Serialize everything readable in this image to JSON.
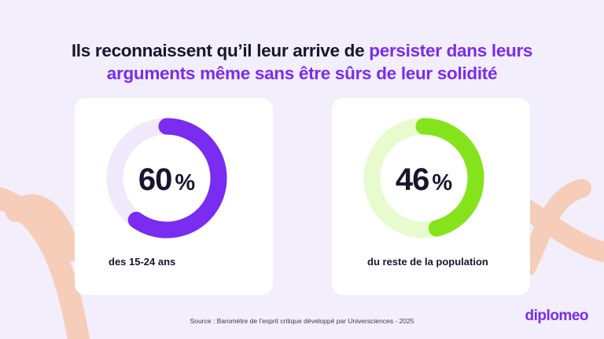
{
  "title": {
    "part1": "Ils reconnaissent qu’il leur arrive de ",
    "highlight1": "persister dans leurs",
    "highlight2": "arguments même sans être sûrs de leur solidité"
  },
  "chart_data": [
    {
      "type": "pie",
      "value": 60,
      "value_label": "60",
      "unit": "%",
      "caption": "des 15-24 ans",
      "color": "#7a2cf0",
      "track_color": "#efe9fb"
    },
    {
      "type": "pie",
      "value": 46,
      "value_label": "46",
      "unit": "%",
      "caption": "du reste de la population",
      "color": "#84e31a",
      "track_color": "#e7fbcf"
    }
  ],
  "source": "Source :  Baromètre de l’esprit critique développé par Universciences - 2025",
  "logo": "diplomeo",
  "colors": {
    "background": "#f2eefb",
    "accent": "#7a2cf0",
    "decoration": "#f6cdb8"
  }
}
